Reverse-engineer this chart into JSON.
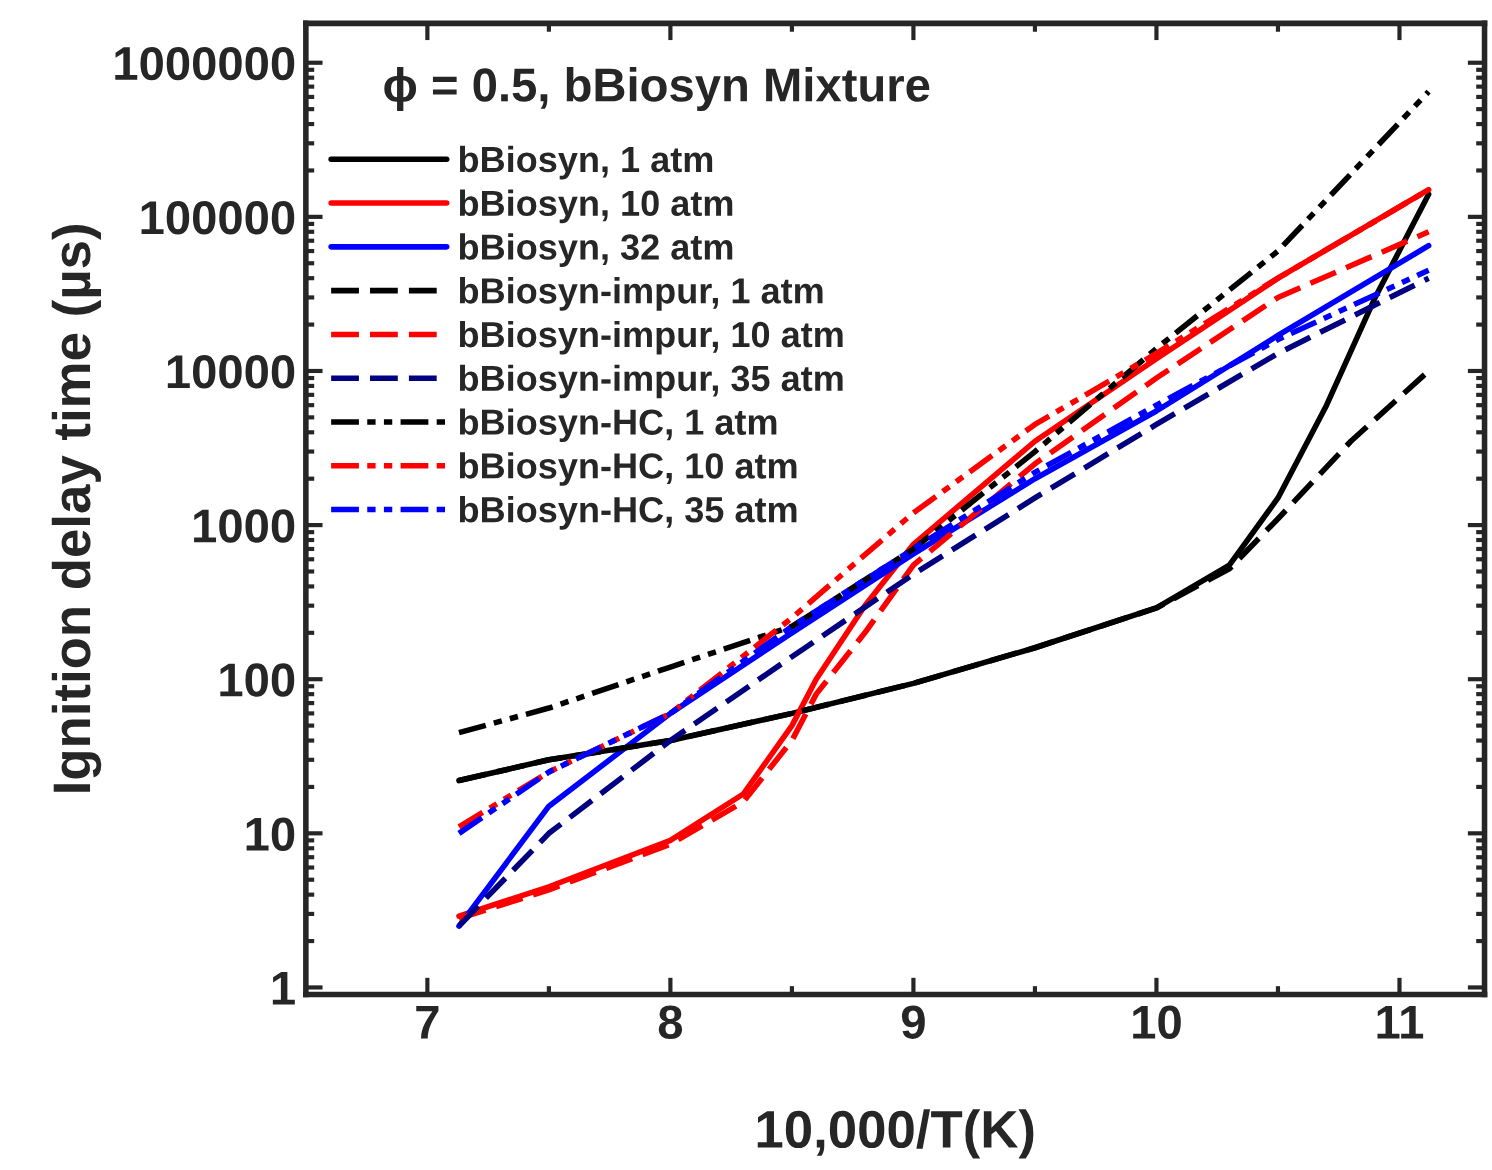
{
  "chart_data": {
    "type": "line",
    "xlabel": "10,000/T(K)",
    "ylabel": "Ignition delay time (µs)",
    "annotations": [
      "ϕ = 0.5, bBiosyn Mixture"
    ],
    "log": "y",
    "xlim": [
      6.5,
      11.35
    ],
    "ylim": [
      0.9,
      1800000
    ],
    "xticks": [
      7,
      8,
      9,
      10,
      11
    ],
    "yticks": [
      1,
      10,
      100,
      1000,
      10000,
      100000,
      1000000
    ],
    "legend": "top left",
    "grid": false,
    "series": [
      {
        "name": "bBiosyn, 1 atm",
        "color": "#000000",
        "line_style": "solid",
        "x": [
          7.13,
          7.5,
          8,
          8.5,
          9,
          9.5,
          10,
          10.3,
          10.5,
          10.7,
          10.9,
          11.12
        ],
        "values": [
          22,
          30,
          40,
          60,
          94,
          160,
          290,
          550,
          1500,
          6000,
          30000,
          140000
        ]
      },
      {
        "name": "bBiosyn, 10 atm",
        "color": "#ff0000",
        "line_style": "solid",
        "x": [
          7.13,
          7.5,
          8,
          8.3,
          8.5,
          8.6,
          8.8,
          9,
          9.5,
          10,
          10.5,
          11.12
        ],
        "values": [
          2.9,
          4.5,
          9,
          18,
          50,
          100,
          300,
          750,
          3500,
          12000,
          40000,
          150000
        ]
      },
      {
        "name": "bBiosyn, 32 atm",
        "color": "#0000ff",
        "line_style": "solid",
        "x": [
          7.13,
          7.5,
          8,
          8.5,
          9,
          9.5,
          10,
          10.5,
          11.12
        ],
        "values": [
          2.5,
          15,
          60,
          200,
          650,
          2000,
          5500,
          17000,
          65000
        ]
      },
      {
        "name": "bBiosyn-impur, 1 atm",
        "color": "#000000",
        "line_style": "dashed",
        "x": [
          7.13,
          7.5,
          8,
          8.5,
          9,
          9.5,
          10,
          10.3,
          10.5,
          10.8,
          11.12
        ],
        "values": [
          22,
          30,
          40,
          60,
          94,
          160,
          290,
          520,
          1100,
          3500,
          10000
        ]
      },
      {
        "name": "bBiosyn-impur, 10 atm",
        "color": "#ff0000",
        "line_style": "dashed",
        "x": [
          7.13,
          7.5,
          8,
          8.3,
          8.5,
          8.6,
          8.8,
          9,
          9.5,
          10,
          10.5,
          11.12
        ],
        "values": [
          2.8,
          4.3,
          8.5,
          16,
          40,
          80,
          200,
          550,
          2500,
          9000,
          30000,
          80000
        ]
      },
      {
        "name": "bBiosyn-impur, 35 atm",
        "color": "#000080",
        "line_style": "dashed",
        "x": [
          7.13,
          7.5,
          8,
          8.5,
          9,
          9.5,
          10,
          10.5,
          11.12
        ],
        "values": [
          2.5,
          10,
          40,
          140,
          480,
          1500,
          4500,
          13000,
          40000
        ]
      },
      {
        "name": "bBiosyn-HC, 1 atm",
        "color": "#000000",
        "line_style": "dashdotdot",
        "x": [
          7.13,
          7.5,
          8,
          8.5,
          9,
          9.5,
          10,
          10.5,
          11.12
        ],
        "values": [
          45,
          65,
          120,
          220,
          700,
          3000,
          14000,
          60000,
          650000
        ]
      },
      {
        "name": "bBiosyn-HC, 10 atm",
        "color": "#ff0000",
        "line_style": "dashdotdot",
        "x": [
          7.13,
          7.5,
          8,
          8.5,
          9,
          9.5,
          10,
          10.5,
          11.12
        ],
        "values": [
          11,
          25,
          60,
          250,
          1200,
          4500,
          13000,
          40000,
          150000
        ]
      },
      {
        "name": "bBiosyn-HC, 35 atm",
        "color": "#0000ff",
        "line_style": "dashdotdot",
        "x": [
          7.13,
          7.5,
          8,
          8.5,
          9,
          9.5,
          10,
          10.5,
          11.12
        ],
        "values": [
          10,
          25,
          60,
          220,
          700,
          2200,
          6000,
          16000,
          45000
        ]
      }
    ]
  }
}
